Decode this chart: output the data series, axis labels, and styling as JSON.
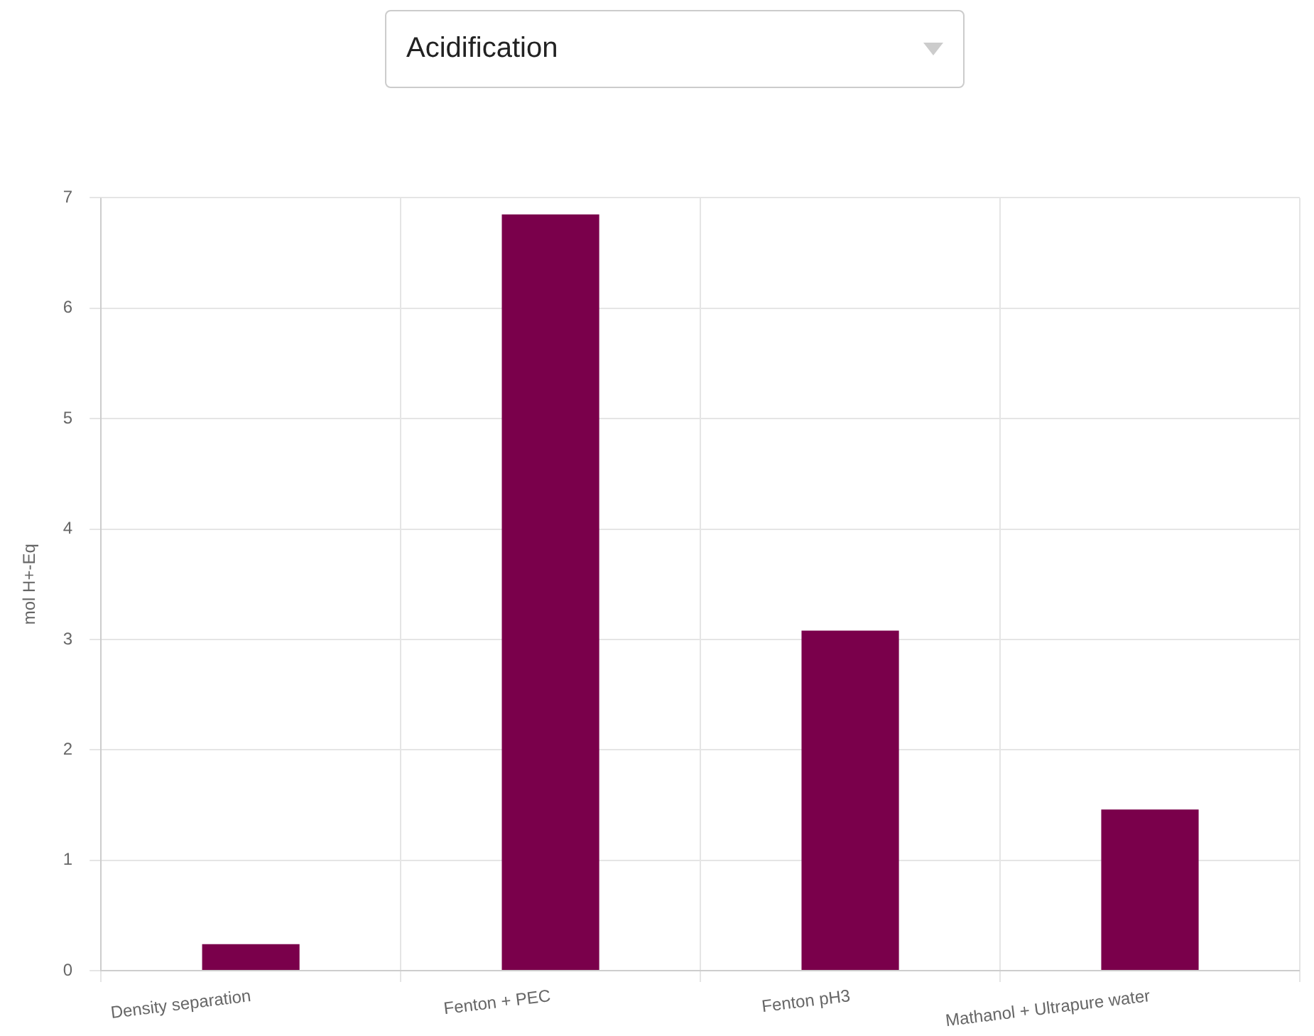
{
  "chart_data": {
    "type": "bar",
    "title": "Acidification",
    "ylabel": "mol H+-Eq",
    "categories": [
      "Density separation",
      "Fenton + PEC",
      "Fenton pH3",
      "Mathanol + Ultrapure water"
    ],
    "values": [
      0.24,
      6.85,
      3.08,
      1.46
    ],
    "color": "#7a004b",
    "ylim": [
      0,
      7
    ],
    "yticks": [
      0,
      1,
      2,
      3,
      4,
      5,
      6,
      7
    ],
    "grid": true,
    "legend": false
  }
}
